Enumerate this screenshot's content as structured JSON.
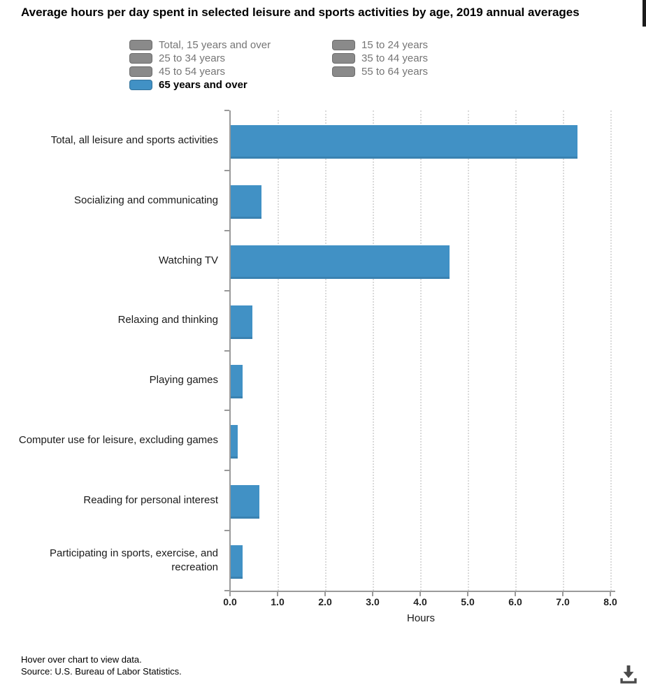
{
  "title": "Average hours per day spent in selected leisure and sports activities by age, 2019 annual averages",
  "legend": {
    "items": [
      {
        "label": "Total, 15 years and over",
        "active": false
      },
      {
        "label": "15 to 24 years",
        "active": false
      },
      {
        "label": "25 to 34 years",
        "active": false
      },
      {
        "label": "35 to 44 years",
        "active": false
      },
      {
        "label": "45 to 54 years",
        "active": false
      },
      {
        "label": "55 to 64 years",
        "active": false
      },
      {
        "label": "65 years and over",
        "active": true
      }
    ]
  },
  "colors": {
    "bar": "#4191c5",
    "bar_bottom_edge": "#3a82b1",
    "legend_inactive_swatch": "#8a8a8a",
    "legend_inactive_text": "#757575",
    "legend_active_text": "#000000",
    "axis": "#9a9a9a",
    "gridline": "#dadada",
    "tick_label": "#222222"
  },
  "chart_data": {
    "type": "bar",
    "orientation": "horizontal",
    "title": "Average hours per day spent in selected leisure and sports activities by age, 2019 annual averages",
    "categories": [
      "Total, all leisure and sports activities",
      "Socializing and communicating",
      "Watching TV",
      "Relaxing and thinking",
      "Playing games",
      "Computer use for leisure, excluding games",
      "Reading for personal interest",
      "Participating in sports, exercise, and recreation"
    ],
    "series": [
      {
        "name": "65 years and over",
        "color": "#4191c5",
        "values": [
          7.3,
          0.65,
          4.6,
          0.45,
          0.25,
          0.15,
          0.6,
          0.25
        ]
      }
    ],
    "hidden_series": [
      "Total, 15 years and over",
      "15 to 24 years",
      "25 to 34 years",
      "35 to 44 years",
      "45 to 54 years",
      "55 to 64 years"
    ],
    "xlabel": "Hours",
    "xlim": [
      0,
      8
    ],
    "xticks": [
      0,
      1,
      2,
      3,
      4,
      5,
      6,
      7,
      8
    ],
    "xtick_labels": [
      "0.0",
      "1.0",
      "2.0",
      "3.0",
      "4.0",
      "5.0",
      "6.0",
      "7.0",
      "8.0"
    ],
    "grid": "vertical-dotted",
    "legend_position": "top"
  },
  "footer": {
    "hint": "Hover over chart to view data.",
    "source": "Source: U.S. Bureau of Labor Statistics."
  }
}
